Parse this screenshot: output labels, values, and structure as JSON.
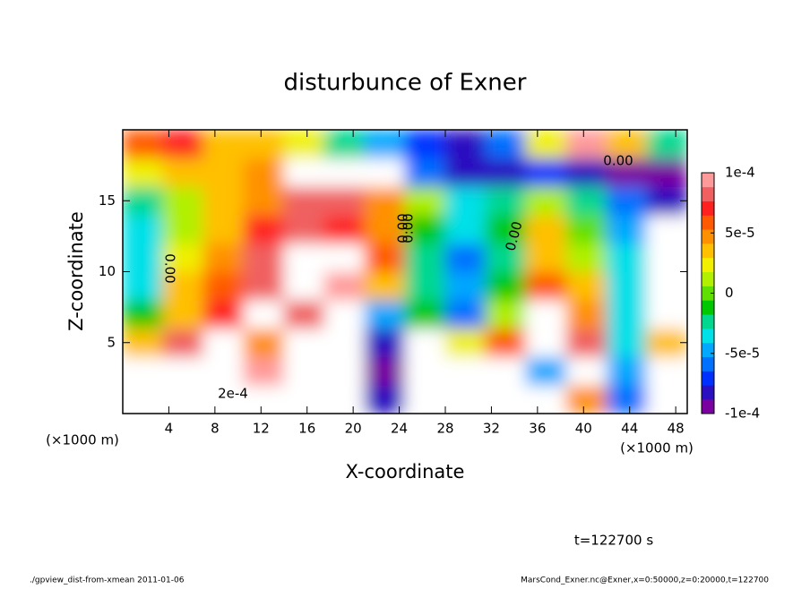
{
  "chart_data": {
    "type": "heatmap",
    "title": "disturbunce of Exner",
    "x_label": "X-coordinate",
    "y_label": "Z-coordinate",
    "x_unit_label": "(×1000 m)",
    "subtitle": "t=122700 s",
    "footer_left": "./gpview_dist-from-xmean  2011-01-06",
    "footer_right": "MarsCond_Exner.nc@Exner,x=0:50000,z=0:20000,t=122700",
    "annotations": [
      "0.00",
      "0.00",
      "0.00",
      "0.00",
      "0.00",
      "2e-4"
    ],
    "x": [
      1.75,
      5.25,
      8.75,
      12.25,
      15.75,
      19.25,
      22.75,
      26.25,
      29.75,
      33.25,
      36.75,
      40.25,
      43.75,
      47.25
    ],
    "y": [
      1,
      3,
      5,
      7,
      9,
      11,
      13,
      15,
      17,
      19
    ],
    "z": [
      [
        0.0002,
        0.00025,
        0.00015,
        0.00012,
        -0.00015,
        -0.0002,
        -8e-05,
        0.00015,
        0.00012,
        -0.00015,
        -0.00015,
        5e-05,
        -6e-05,
        0.00015
      ],
      [
        0.00015,
        0.0002,
        0.00015,
        9e-05,
        -0.0002,
        -0.0002,
        -9e-05,
        0.00015,
        0.00012,
        0.00013,
        -5e-05,
        0.00015,
        -5e-05,
        0.00015
      ],
      [
        3e-05,
        8e-05,
        0.00012,
        5e-05,
        -0.0002,
        -0.00015,
        -8e-05,
        0.00015,
        2e-05,
        6e-05,
        0.00013,
        8e-05,
        -4e-05,
        3e-05
      ],
      [
        -1e-05,
        4e-05,
        7e-05,
        0.00012,
        8e-05,
        0.00013,
        -5e-05,
        -1e-05,
        -6e-05,
        1e-05,
        0.00012,
        5e-05,
        -3e-05,
        0.00012
      ],
      [
        -3e-05,
        3e-05,
        6e-05,
        8e-05,
        0.00012,
        9e-05,
        3e-05,
        -2e-05,
        -5e-05,
        -1e-05,
        6e-05,
        3e-05,
        -3e-05,
        0.00015
      ],
      [
        -4e-05,
        2e-05,
        5e-05,
        8e-05,
        0.00012,
        0.00012,
        6e-05,
        -2e-05,
        -6e-05,
        -2e-05,
        4e-05,
        1e-05,
        -4e-05,
        0.00015
      ],
      [
        -3e-05,
        1e-05,
        4e-05,
        7e-05,
        8e-05,
        7e-05,
        5e-05,
        -1e-05,
        -4e-05,
        -1e-05,
        3e-05,
        0,
        -5e-05,
        0.00015
      ],
      [
        -2e-05,
        1e-05,
        3e-05,
        5e-05,
        8e-05,
        8e-05,
        5e-05,
        1e-05,
        -3e-05,
        -2e-05,
        1e-05,
        -2e-05,
        -6e-05,
        -8e-05
      ],
      [
        2e-05,
        3e-05,
        4e-05,
        5e-05,
        0.00015,
        0.00015,
        0.00013,
        -6e-05,
        -8e-05,
        -8e-05,
        -7e-05,
        -8e-05,
        -9e-05,
        -9e-05
      ],
      [
        6e-05,
        7e-05,
        4e-05,
        3e-05,
        2e-05,
        -2e-05,
        -5e-05,
        -7e-05,
        -8e-05,
        -6e-05,
        2e-05,
        9e-05,
        3e-05,
        -2e-05
      ]
    ],
    "xlim": [
      0,
      49
    ],
    "ylim": [
      0,
      20
    ],
    "xticks": [
      4,
      8,
      12,
      16,
      20,
      24,
      28,
      32,
      36,
      40,
      44,
      48
    ],
    "yticks": [
      5,
      10,
      15
    ],
    "clim": [
      -0.0001,
      0.0001
    ],
    "cticks": [
      {
        "value": 0.0001,
        "label": "1e-4"
      },
      {
        "value": 5e-05,
        "label": "5e-5"
      },
      0,
      {
        "value": -5e-05,
        "label": "-5e-5"
      },
      {
        "value": -0.0001,
        "label": "-1e-4"
      }
    ],
    "colors": [
      "#7a00a0",
      "#2a10c0",
      "#0030ff",
      "#0070ff",
      "#00a8ff",
      "#00e0e8",
      "#00d890",
      "#00c800",
      "#60e000",
      "#b0f000",
      "#f0f000",
      "#ffc000",
      "#ff9000",
      "#ff5a00",
      "#ff2020",
      "#f06060",
      "#ff9a9a"
    ],
    "out_of_range_color": "#ffffff"
  }
}
